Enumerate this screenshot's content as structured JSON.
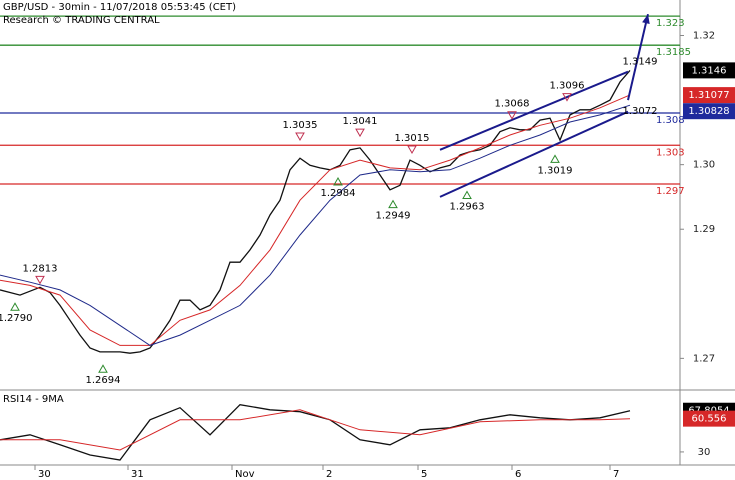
{
  "header": {
    "title": "GBP/USD - 30min - 11/07/2018 05:53:45 (CET)",
    "subtitle": "Research © TRADING CENTRAL"
  },
  "chart_data": [
    {
      "type": "line",
      "x": [
        0,
        1,
        2,
        3,
        4,
        5,
        6,
        7,
        8,
        9,
        10,
        11,
        12,
        13,
        14,
        15,
        16,
        17,
        18,
        19,
        20,
        21,
        22,
        23,
        24,
        25,
        26,
        27,
        28,
        29,
        30,
        31,
        32,
        33,
        34,
        35,
        36,
        37,
        38,
        39,
        40,
        41,
        42,
        43,
        44,
        45,
        46,
        47,
        48,
        49,
        50,
        51,
        52,
        53,
        54,
        55,
        56,
        57,
        58,
        59,
        60,
        61,
        62,
        63
      ],
      "xlim": [
        0,
        68
      ],
      "xticks": [
        {
          "value": 3.5,
          "label": "30"
        },
        {
          "value": 12.8,
          "label": "31"
        },
        {
          "value": 23.2,
          "label": "Nov"
        },
        {
          "value": 32.3,
          "label": "2"
        },
        {
          "value": 41.8,
          "label": "5"
        },
        {
          "value": 51.2,
          "label": "6"
        },
        {
          "value": 61,
          "label": "7"
        }
      ],
      "ylim": [
        1.2651,
        1.3255
      ],
      "yticks": [
        1.32,
        {
          "value": 1.3,
          "label": "1.30"
        },
        1.29,
        1.27
      ],
      "series": [
        {
          "color": "#111111",
          "values": [
            1.2806,
            1.2802,
            1.2798,
            1.2804,
            1.281,
            1.2802,
            1.2782,
            1.2759,
            1.2736,
            1.2716,
            1.271,
            1.271,
            1.271,
            1.2708,
            1.271,
            1.2716,
            1.2736,
            1.2759,
            1.279,
            1.279,
            1.2775,
            1.2782,
            1.2806,
            1.2849,
            1.2849,
            1.2868,
            1.2891,
            1.2922,
            1.2945,
            1.2992,
            1.301,
            1.2999,
            1.2995,
            1.2992,
            1.2999,
            1.3023,
            1.3026,
            1.3007,
            1.2984,
            1.2961,
            1.2968,
            1.3007,
            1.2999,
            1.2989,
            1.2995,
            1.2999,
            1.3015,
            1.302,
            1.3023,
            1.303,
            1.3051,
            1.3057,
            1.3054,
            1.3054,
            1.3069,
            1.3072,
            1.3038,
            1.3077,
            1.3085,
            1.3085,
            1.3092,
            1.31,
            1.3128,
            1.3146
          ]
        },
        {
          "color": "#d62728",
          "x": [
            0,
            3,
            6,
            9,
            12,
            15,
            18,
            21,
            24,
            27,
            30,
            33,
            36,
            39,
            42,
            45,
            48,
            51,
            54,
            57,
            60,
            63
          ],
          "values": [
            1.2821,
            1.2813,
            1.2798,
            1.2744,
            1.272,
            1.272,
            1.2759,
            1.2775,
            1.2813,
            1.2868,
            1.2945,
            1.2992,
            1.3007,
            1.2995,
            1.2992,
            1.3007,
            1.3026,
            1.3046,
            1.3061,
            1.3072,
            1.3088,
            1.3108
          ]
        },
        {
          "color": "#1f2a8a",
          "x": [
            0,
            3,
            6,
            9,
            12,
            15,
            18,
            21,
            24,
            27,
            30,
            33,
            36,
            39,
            42,
            45,
            48,
            51,
            54,
            57,
            60,
            63
          ],
          "values": [
            1.2829,
            1.2818,
            1.2806,
            1.2782,
            1.2751,
            1.272,
            1.2736,
            1.2759,
            1.2782,
            1.2829,
            1.2891,
            1.2945,
            1.2984,
            1.2992,
            1.2989,
            1.2992,
            1.301,
            1.303,
            1.3046,
            1.3066,
            1.3077,
            1.3092
          ]
        }
      ],
      "levels": [
        {
          "value": 1.323,
          "color": "#2e8b2e"
        },
        {
          "value": 1.3185,
          "color": "#2e8b2e"
        },
        {
          "value": 1.308,
          "color": "#1f2a9c"
        },
        {
          "value": 1.303,
          "color": "#d62728"
        },
        {
          "value": 1.297,
          "color": "#d62728"
        }
      ],
      "price_tags": [
        {
          "value": 1.3146,
          "color": "#000000"
        },
        {
          "value": 1.31077,
          "color": "#d62728"
        },
        {
          "value": 1.30828,
          "color": "#1f2a9c"
        }
      ],
      "pivots": [
        {
          "x": 4,
          "value": 1.2813,
          "type": "high"
        },
        {
          "x": 1.5,
          "value": 1.279,
          "label": "1.2790",
          "type": "low"
        },
        {
          "x": 10.3,
          "value": 1.2694,
          "type": "low"
        },
        {
          "x": 30,
          "value": 1.3035,
          "type": "high"
        },
        {
          "x": 36,
          "value": 1.3041,
          "type": "high"
        },
        {
          "x": 33.8,
          "value": 1.2984,
          "type": "low"
        },
        {
          "x": 41.2,
          "value": 1.3015,
          "type": "high"
        },
        {
          "x": 39.3,
          "value": 1.2949,
          "type": "low"
        },
        {
          "x": 46.7,
          "value": 1.2963,
          "type": "low"
        },
        {
          "x": 51.2,
          "value": 1.3068,
          "type": "high"
        },
        {
          "x": 56.7,
          "value": 1.3096,
          "type": "high"
        },
        {
          "x": 55.5,
          "value": 1.3019,
          "type": "low"
        },
        {
          "x": 64,
          "value": 1.3072,
          "type": "text"
        },
        {
          "x": 64,
          "value": 1.3149,
          "type": "text"
        }
      ],
      "trendlines": [
        {
          "color": "#1a1a8c",
          "x": [
            44,
            62.8
          ],
          "values": [
            1.3023,
            1.3144
          ]
        },
        {
          "color": "#1a1a8c",
          "x": [
            44,
            62.8
          ],
          "values": [
            1.295,
            1.3082
          ]
        }
      ],
      "arrow": {
        "color": "#1a1a8c",
        "x": [
          62.8,
          64.8
        ],
        "values": [
          1.31,
          1.3233
        ]
      }
    },
    {
      "type": "line",
      "title": "RSI14 - 9MA",
      "xlim": [
        0,
        68
      ],
      "ylim": [
        18,
        85
      ],
      "yticks": [
        30
      ],
      "series": [
        {
          "color": "#111111",
          "x": [
            0,
            3,
            6,
            9,
            12,
            15,
            18,
            21,
            24,
            27,
            30,
            33,
            36,
            39,
            42,
            45,
            48,
            51,
            54,
            57,
            60,
            63
          ],
          "values": [
            41.1,
            45.7,
            36.5,
            27.2,
            22.6,
            59.5,
            70.6,
            45.7,
            73.3,
            68.7,
            66.9,
            59.5,
            41.1,
            36.5,
            50.3,
            52.1,
            59.5,
            64.1,
            61.3,
            59.5,
            61.3,
            67.8
          ]
        },
        {
          "color": "#d62728",
          "x": [
            0,
            6,
            12,
            18,
            24,
            30,
            36,
            42,
            48,
            54,
            60,
            63
          ],
          "values": [
            41.1,
            41.1,
            31.8,
            59.5,
            59.5,
            68.7,
            50.3,
            45.7,
            57.7,
            59.5,
            59.5,
            60.5
          ]
        }
      ],
      "price_tags": [
        {
          "value": 67.8054,
          "color": "#000000"
        },
        {
          "value": 60.556,
          "color": "#d62728"
        }
      ]
    }
  ]
}
